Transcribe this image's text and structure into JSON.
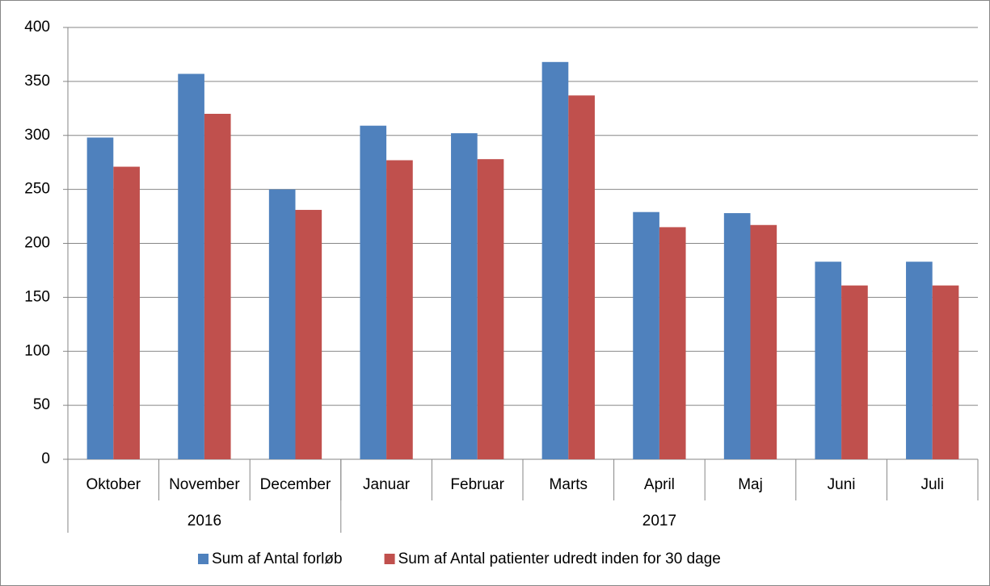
{
  "chart_data": {
    "type": "bar",
    "groups": [
      {
        "label": "2016",
        "categories": [
          "Oktober",
          "November",
          "December"
        ]
      },
      {
        "label": "2017",
        "categories": [
          "Januar",
          "Februar",
          "Marts",
          "April",
          "Maj",
          "Juni",
          "Juli"
        ]
      }
    ],
    "series": [
      {
        "name": "Sum af Antal forløb",
        "color": "#4f81bd",
        "values": [
          298,
          357,
          250,
          309,
          302,
          368,
          229,
          228,
          183,
          183
        ]
      },
      {
        "name": "Sum af Antal patienter udredt inden for 30 dage",
        "color": "#c0504d",
        "values": [
          271,
          320,
          231,
          277,
          278,
          337,
          215,
          217,
          161,
          161
        ]
      }
    ],
    "ylim": [
      0,
      400
    ],
    "yticks": [
      0,
      50,
      100,
      150,
      200,
      250,
      300,
      350,
      400
    ],
    "grid": true,
    "legend": "bottom"
  }
}
